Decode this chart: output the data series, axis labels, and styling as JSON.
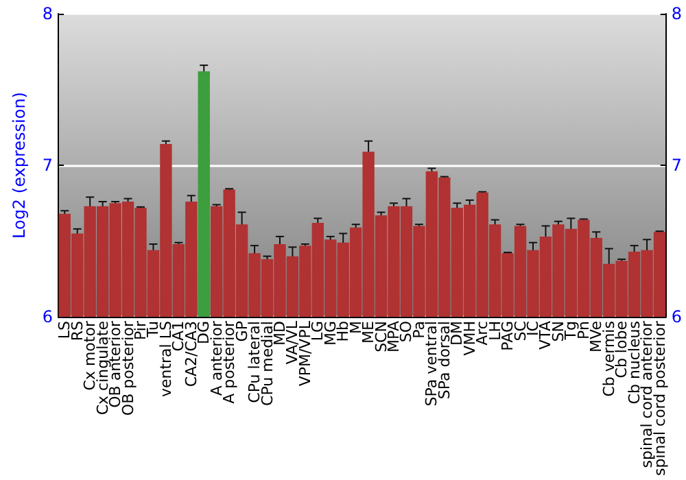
{
  "chart_data": {
    "type": "bar",
    "ylabel": "Log2 (expression)",
    "categories": [
      "LS",
      "RS",
      "Cx motor",
      "Cx cingulate",
      "OB anterior",
      "OB posterior",
      "Pir",
      "Tu",
      "ventral LS",
      "CA1",
      "CA2/CA3",
      "DG",
      "A anterior",
      "A posterior",
      "GP",
      "CPu lateral",
      "CPu medial",
      "MD",
      "VA/VL",
      "VPM/VPL",
      "LG",
      "MG",
      "Hb",
      "M",
      "ME",
      "SCN",
      "MPA",
      "SO",
      "Pa",
      "SPa ventral",
      "SPa dorsal",
      "DM",
      "VMH",
      "Arc",
      "LH",
      "PAG",
      "SC",
      "IC",
      "VTA",
      "SN",
      "Tg",
      "Pn",
      "MVe",
      "Cb vermis",
      "Cb lobe",
      "Cb nucleus",
      "spinal cord anterior",
      "spinal cord posterior"
    ],
    "values": [
      6.68,
      6.55,
      6.73,
      6.73,
      6.75,
      6.76,
      6.72,
      6.44,
      7.14,
      6.48,
      6.76,
      7.62,
      6.73,
      6.84,
      6.61,
      6.42,
      6.38,
      6.48,
      6.4,
      6.47,
      6.62,
      6.51,
      6.49,
      6.59,
      7.09,
      6.67,
      6.73,
      6.73,
      6.6,
      6.96,
      6.92,
      6.72,
      6.74,
      6.82,
      6.61,
      6.42,
      6.6,
      6.44,
      6.53,
      6.61,
      6.58,
      6.64,
      6.52,
      6.35,
      6.37,
      6.43,
      6.44,
      6.56
    ],
    "errors": [
      0.02,
      0.03,
      0.06,
      0.03,
      0.01,
      0.02,
      0.005,
      0.04,
      0.02,
      0.01,
      0.04,
      0.04,
      0.01,
      0.005,
      0.08,
      0.05,
      0.02,
      0.05,
      0.06,
      0.01,
      0.03,
      0.02,
      0.06,
      0.02,
      0.07,
      0.02,
      0.02,
      0.05,
      0.01,
      0.02,
      0.005,
      0.03,
      0.03,
      0.005,
      0.03,
      0.005,
      0.01,
      0.05,
      0.07,
      0.02,
      0.07,
      0.005,
      0.04,
      0.1,
      0.01,
      0.04,
      0.07,
      0.005
    ],
    "colors": [
      "#b03232",
      "#b03232",
      "#b03232",
      "#b03232",
      "#b03232",
      "#b03232",
      "#b03232",
      "#b03232",
      "#b03232",
      "#b03232",
      "#b03232",
      "#3c9e3c",
      "#b03232",
      "#b03232",
      "#b03232",
      "#b03232",
      "#b03232",
      "#b03232",
      "#b03232",
      "#b03232",
      "#b03232",
      "#b03232",
      "#b03232",
      "#b03232",
      "#b03232",
      "#b03232",
      "#b03232",
      "#b03232",
      "#b03232",
      "#b03232",
      "#b03232",
      "#b03232",
      "#b03232",
      "#b03232",
      "#b03232",
      "#b03232",
      "#b03232",
      "#b03232",
      "#b03232",
      "#b03232",
      "#b03232",
      "#b03232",
      "#b03232",
      "#b03232",
      "#b03232",
      "#b03232",
      "#b03232",
      "#b03232"
    ],
    "ylim": [
      6,
      8
    ],
    "yticks": [
      6,
      7,
      8
    ],
    "y2lim": [
      6,
      8
    ],
    "y2ticks": [
      6,
      7,
      8
    ],
    "grid": "y"
  }
}
